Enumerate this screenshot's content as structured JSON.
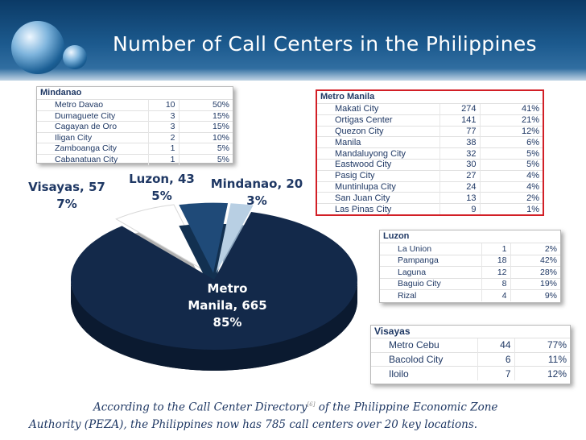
{
  "slide": {
    "title": "Number of Call Centers in the Philippines"
  },
  "tables": {
    "mindanao": {
      "title": "Mindanao",
      "rows": [
        [
          "Metro Davao",
          "10",
          "50%"
        ],
        [
          "Dumaguete City",
          "3",
          "15%"
        ],
        [
          "Cagayan de Oro",
          "3",
          "15%"
        ],
        [
          "Iligan City",
          "2",
          "10%"
        ],
        [
          "Zamboanga City",
          "1",
          "5%"
        ],
        [
          "Cabanatuan City",
          "1",
          "5%"
        ]
      ]
    },
    "metro_manila": {
      "title": "Metro Manila",
      "rows": [
        [
          "Makati City",
          "274",
          "41%"
        ],
        [
          "Ortigas Center",
          "141",
          "21%"
        ],
        [
          "Quezon City",
          "77",
          "12%"
        ],
        [
          "Manila",
          "38",
          "6%"
        ],
        [
          "Mandaluyong City",
          "32",
          "5%"
        ],
        [
          "Eastwood City",
          "30",
          "5%"
        ],
        [
          "Pasig City",
          "27",
          "4%"
        ],
        [
          "Muntinlupa City",
          "24",
          "4%"
        ],
        [
          "San Juan City",
          "13",
          "2%"
        ],
        [
          "Las Pinas City",
          "9",
          "1%"
        ]
      ]
    },
    "luzon": {
      "title": "Luzon",
      "rows": [
        [
          "La Union",
          "1",
          "2%"
        ],
        [
          "Pampanga",
          "18",
          "42%"
        ],
        [
          "Laguna",
          "12",
          "28%"
        ],
        [
          "Baguio City",
          "8",
          "19%"
        ],
        [
          "Rizal",
          "4",
          "9%"
        ]
      ]
    },
    "visayas": {
      "title": "Visayas",
      "rows": [
        [
          "Metro Cebu",
          "44",
          "77%"
        ],
        [
          "Bacolod City",
          "6",
          "11%"
        ],
        [
          "Iloilo",
          "7",
          "12%"
        ]
      ]
    }
  },
  "chart_data": {
    "type": "pie",
    "categories": [
      "Metro Manila",
      "Visayas",
      "Luzon",
      "Mindanao"
    ],
    "values": [
      665,
      57,
      43,
      20
    ],
    "percentages": [
      "85%",
      "7%",
      "5%",
      "3%"
    ],
    "colors": [
      "#13294a",
      "#ffffff",
      "#1f4a78",
      "#b8cfe3"
    ],
    "labels": [
      {
        "line1": "Metro",
        "line2": "Manila, 665",
        "line3": "85%"
      },
      {
        "line1": "Visayas, 57",
        "line2": "7%"
      },
      {
        "line1": "Luzon, 43",
        "line2": "5%"
      },
      {
        "line1": "Mindanao, 20",
        "line2": "3%"
      }
    ],
    "style": "3d-exploded"
  },
  "caption": {
    "part1": "According to the Call Center Directory",
    "ref": "[6]",
    "part2": " of the Philippine Economic Zone Authority (PEZA), the Philippines now has 785 call centers over 20 key locations."
  }
}
